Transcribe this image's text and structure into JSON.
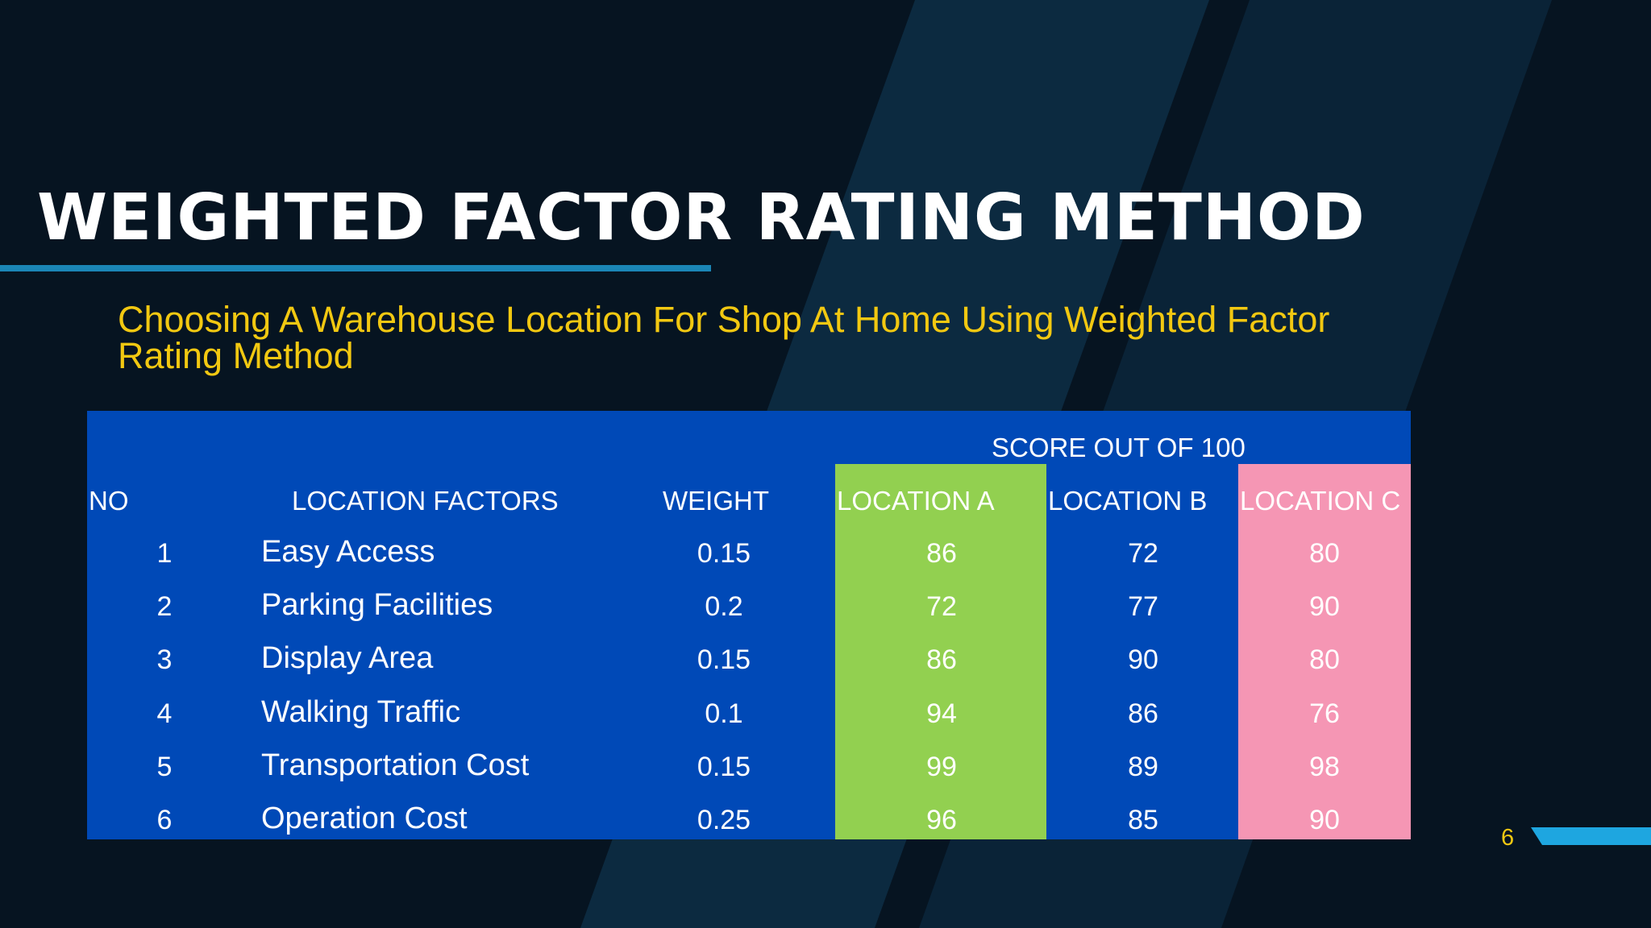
{
  "slide": {
    "title": "WEIGHTED FACTOR RATING METHOD",
    "subtitle": "Choosing A Warehouse Location For Shop At Home Using Weighted Factor Rating Method",
    "page_number": "6"
  },
  "colors": {
    "background": "#061421",
    "stripe": "#0c2a40",
    "title": "#ffffff",
    "accent_line": "#1b86b6",
    "subtitle": "#f2c811",
    "table_bg": "#0049b7",
    "location_a_bg": "#92d050",
    "location_c_bg": "#f596b4",
    "corner_accent": "#1ea6e0"
  },
  "table": {
    "group_header": "SCORE OUT OF 100",
    "headers": {
      "no": "NO",
      "factors": "LOCATION FACTORS",
      "weight": "WEIGHT",
      "loc_a": "LOCATION A",
      "loc_b": "LOCATION B",
      "loc_c": "LOCATION C"
    },
    "rows": [
      {
        "no": "1",
        "factor": "Easy Access",
        "weight": "0.15",
        "a": "86",
        "b": "72",
        "c": "80"
      },
      {
        "no": "2",
        "factor": "Parking Facilities",
        "weight": "0.2",
        "a": "72",
        "b": "77",
        "c": "90"
      },
      {
        "no": "3",
        "factor": "Display Area",
        "weight": "0.15",
        "a": "86",
        "b": "90",
        "c": "80"
      },
      {
        "no": "4",
        "factor": "Walking Traffic",
        "weight": "0.1",
        "a": "94",
        "b": "86",
        "c": "76"
      },
      {
        "no": "5",
        "factor": "Transportation Cost",
        "weight": "0.15",
        "a": "99",
        "b": "89",
        "c": "98"
      },
      {
        "no": "6",
        "factor": "Operation Cost",
        "weight": "0.25",
        "a": "96",
        "b": "85",
        "c": "90"
      }
    ]
  }
}
